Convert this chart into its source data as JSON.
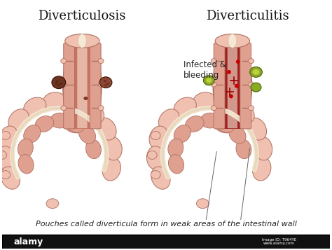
{
  "title_left": "Diverticulosis",
  "title_right": "Diverticulitis",
  "annotation_infected": "Infected &\nbleeding",
  "caption": "Pouches called diverticula form in weak areas of the intestinal wall",
  "bg_color": "#ffffff",
  "title_fontsize": 13,
  "caption_fontsize": 8.0,
  "annotation_fontsize": 8.5,
  "skin_light": "#f0c0b0",
  "skin_mid": "#e0a090",
  "skin_dark": "#c08070",
  "skin_shadow": "#b87060",
  "red_inflamed": "#c03030",
  "red_inner": "#a02020",
  "red_bright": "#cc1111",
  "green_pus": "#8aaa20",
  "cream_color": "#f5e8d5",
  "dark_brown": "#6b3322",
  "border_color": "#b07060",
  "line_color": "#666666"
}
